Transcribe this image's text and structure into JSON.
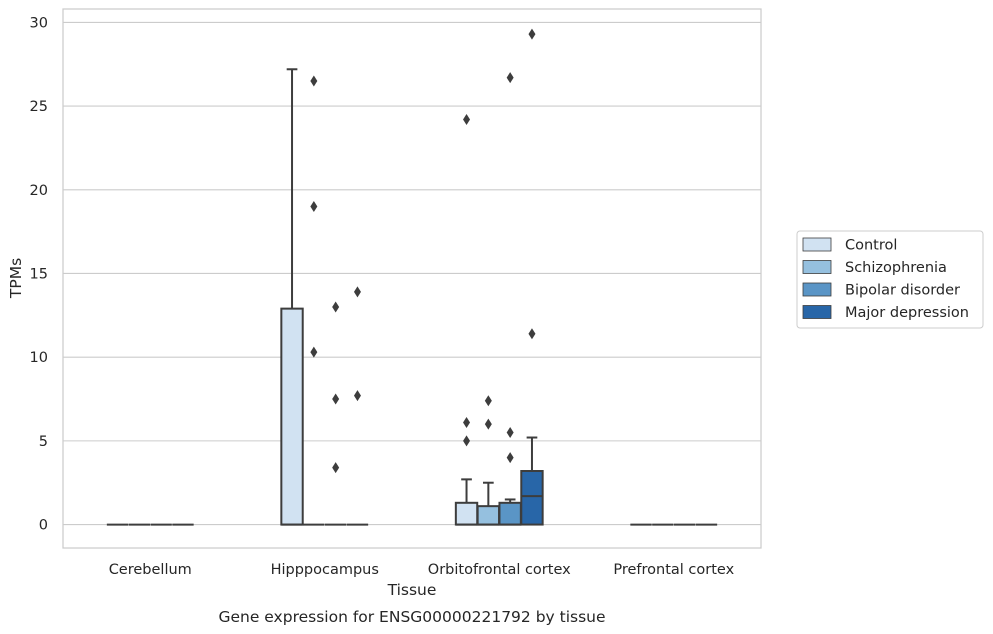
{
  "chart_data": {
    "type": "box",
    "title": "",
    "caption": "Gene expression for ENSG00000221792 by tissue",
    "xlabel": "Tissue",
    "ylabel": "TPMs",
    "ylim": [
      -1.4,
      30.8
    ],
    "yticks": [
      0,
      5,
      10,
      15,
      20,
      25,
      30
    ],
    "grid": "horizontal",
    "legend_position": "right",
    "categories": [
      "Cerebellum",
      "Hipppocampus",
      "Orbitofrontal cortex",
      "Prefrontal cortex"
    ],
    "series": [
      {
        "name": "Control",
        "color": "#d1e2f2"
      },
      {
        "name": "Schizophrenia",
        "color": "#95c0df"
      },
      {
        "name": "Bipolar disorder",
        "color": "#5a95c6"
      },
      {
        "name": "Major depression",
        "color": "#2866a8"
      }
    ],
    "boxes": [
      {
        "category": "Cerebellum",
        "series": "Control",
        "min": 0,
        "q1": 0,
        "median": 0,
        "q3": 0,
        "max": 0,
        "outliers": []
      },
      {
        "category": "Cerebellum",
        "series": "Schizophrenia",
        "min": 0,
        "q1": 0,
        "median": 0,
        "q3": 0,
        "max": 0,
        "outliers": []
      },
      {
        "category": "Cerebellum",
        "series": "Bipolar disorder",
        "min": 0,
        "q1": 0,
        "median": 0,
        "q3": 0,
        "max": 0,
        "outliers": []
      },
      {
        "category": "Cerebellum",
        "series": "Major depression",
        "min": 0,
        "q1": 0,
        "median": 0,
        "q3": 0,
        "max": 0,
        "outliers": []
      },
      {
        "category": "Hipppocampus",
        "series": "Control",
        "min": 0,
        "q1": 0,
        "median": 0,
        "q3": 12.9,
        "max": 27.2,
        "outliers": []
      },
      {
        "category": "Hipppocampus",
        "series": "Schizophrenia",
        "min": 0,
        "q1": 0,
        "median": 0,
        "q3": 0,
        "max": 0,
        "outliers": [
          26.5,
          19.0,
          10.3
        ]
      },
      {
        "category": "Hipppocampus",
        "series": "Bipolar disorder",
        "min": 0,
        "q1": 0,
        "median": 0,
        "q3": 0,
        "max": 0,
        "outliers": [
          13.0,
          7.5,
          3.4
        ]
      },
      {
        "category": "Hipppocampus",
        "series": "Major depression",
        "min": 0,
        "q1": 0,
        "median": 0,
        "q3": 0,
        "max": 0,
        "outliers": [
          13.9,
          7.7
        ]
      },
      {
        "category": "Orbitofrontal cortex",
        "series": "Control",
        "min": 0,
        "q1": 0,
        "median": 0,
        "q3": 1.3,
        "max": 2.7,
        "outliers": [
          24.2,
          6.1,
          5.0
        ]
      },
      {
        "category": "Orbitofrontal cortex",
        "series": "Schizophrenia",
        "min": 0,
        "q1": 0,
        "median": 0,
        "q3": 1.1,
        "max": 2.5,
        "outliers": [
          7.4,
          6.0
        ]
      },
      {
        "category": "Orbitofrontal cortex",
        "series": "Bipolar disorder",
        "min": 0,
        "q1": 0,
        "median": 0,
        "q3": 1.3,
        "max": 1.5,
        "outliers": [
          26.7,
          5.5,
          4.0
        ]
      },
      {
        "category": "Orbitofrontal cortex",
        "series": "Major depression",
        "min": 0,
        "q1": 0,
        "median": 1.7,
        "q3": 3.2,
        "max": 5.2,
        "outliers": [
          29.3,
          11.4
        ]
      },
      {
        "category": "Prefrontal cortex",
        "series": "Control",
        "min": 0,
        "q1": 0,
        "median": 0,
        "q3": 0,
        "max": 0,
        "outliers": []
      },
      {
        "category": "Prefrontal cortex",
        "series": "Schizophrenia",
        "min": 0,
        "q1": 0,
        "median": 0,
        "q3": 0,
        "max": 0,
        "outliers": []
      },
      {
        "category": "Prefrontal cortex",
        "series": "Bipolar disorder",
        "min": 0,
        "q1": 0,
        "median": 0,
        "q3": 0,
        "max": 0,
        "outliers": []
      },
      {
        "category": "Prefrontal cortex",
        "series": "Major depression",
        "min": 0,
        "q1": 0,
        "median": 0,
        "q3": 0,
        "max": 0,
        "outliers": []
      }
    ]
  }
}
